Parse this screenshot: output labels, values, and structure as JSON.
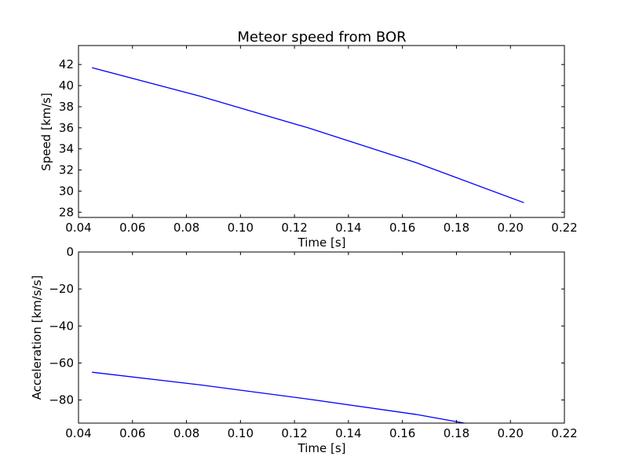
{
  "chart_data": [
    {
      "type": "line",
      "title": "Meteor speed from  BOR",
      "xlabel": "Time [s]",
      "ylabel": "Speed [km/s]",
      "xlim": [
        0.04,
        0.22
      ],
      "ylim": [
        27.5,
        43.8
      ],
      "x_ticks": [
        0.04,
        0.06,
        0.08,
        0.1,
        0.12,
        0.14,
        0.16,
        0.18,
        0.2,
        0.22
      ],
      "x_tick_labels": [
        "0.04",
        "0.06",
        "0.08",
        "0.10",
        "0.12",
        "0.14",
        "0.16",
        "0.18",
        "0.20",
        "0.22"
      ],
      "y_ticks": [
        28,
        30,
        32,
        34,
        36,
        38,
        40,
        42
      ],
      "y_tick_labels": [
        "28",
        "30",
        "32",
        "34",
        "36",
        "38",
        "40",
        "42"
      ],
      "grid": false,
      "series": [
        {
          "color": "#0000ff",
          "x": [
            0.045,
            0.085,
            0.125,
            0.165,
            0.205
          ],
          "y": [
            41.7,
            39.0,
            36.0,
            32.7,
            28.9
          ]
        }
      ]
    },
    {
      "type": "line",
      "title": "",
      "xlabel": "Time [s]",
      "ylabel": "Acceleration [km/s/s]",
      "xlim": [
        0.04,
        0.22
      ],
      "ylim": [
        -92.5,
        0
      ],
      "x_ticks": [
        0.04,
        0.06,
        0.08,
        0.1,
        0.12,
        0.14,
        0.16,
        0.18,
        0.2,
        0.22
      ],
      "x_tick_labels": [
        "0.04",
        "0.06",
        "0.08",
        "0.10",
        "0.12",
        "0.14",
        "0.16",
        "0.18",
        "0.20",
        "0.22"
      ],
      "y_ticks": [
        0,
        -20,
        -40,
        -60,
        -80
      ],
      "y_tick_labels": [
        "0",
        "−20",
        "−40",
        "−60",
        "−80"
      ],
      "grid": false,
      "series": [
        {
          "color": "#0000ff",
          "x": [
            0.045,
            0.085,
            0.125,
            0.165,
            0.183
          ],
          "y": [
            -65.0,
            -71.8,
            -79.5,
            -87.8,
            -92.5
          ]
        }
      ]
    }
  ]
}
